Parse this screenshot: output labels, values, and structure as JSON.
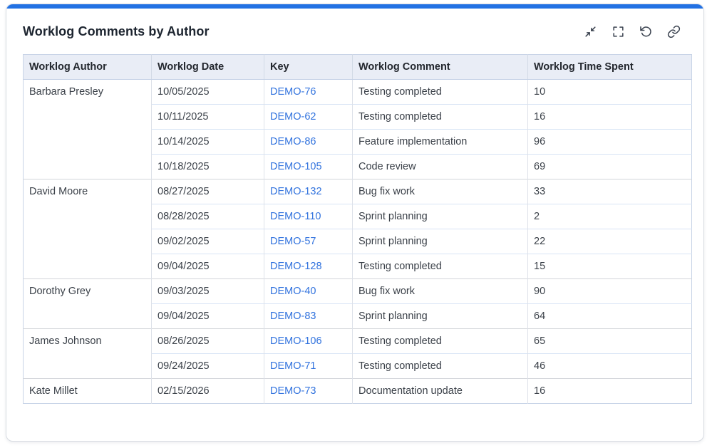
{
  "card": {
    "title": "Worklog Comments by Author",
    "accent_color": "#2271e3",
    "toolbar": [
      {
        "name": "collapse",
        "icon": "collapse-icon",
        "label": "Collapse"
      },
      {
        "name": "fullscreen",
        "icon": "fullscreen-icon",
        "label": "Fullscreen"
      },
      {
        "name": "refresh",
        "icon": "refresh-icon",
        "label": "Refresh"
      },
      {
        "name": "link",
        "icon": "link-icon",
        "label": "Copy link"
      }
    ]
  },
  "table": {
    "columns": [
      "Worklog Author",
      "Worklog Date",
      "Key",
      "Worklog Comment",
      "Worklog Time Spent"
    ],
    "colors": {
      "header_background": "#e9edf6",
      "link": "#3273de",
      "body_text": "#3b4149",
      "row_divider": "#d8e4f5",
      "group_divider": "#d2d5da",
      "outer_border": "#c8d4e7"
    },
    "groups": [
      {
        "author": "Barbara Presley",
        "rows": [
          {
            "date": "10/05/2025",
            "key": "DEMO-76",
            "comment": "Testing completed",
            "time_spent": "10"
          },
          {
            "date": "10/11/2025",
            "key": "DEMO-62",
            "comment": "Testing completed",
            "time_spent": "16"
          },
          {
            "date": "10/14/2025",
            "key": "DEMO-86",
            "comment": "Feature implementation",
            "time_spent": "96"
          },
          {
            "date": "10/18/2025",
            "key": "DEMO-105",
            "comment": "Code review",
            "time_spent": "69"
          }
        ]
      },
      {
        "author": "David Moore",
        "rows": [
          {
            "date": "08/27/2025",
            "key": "DEMO-132",
            "comment": "Bug fix work",
            "time_spent": "33"
          },
          {
            "date": "08/28/2025",
            "key": "DEMO-110",
            "comment": "Sprint planning",
            "time_spent": "2"
          },
          {
            "date": "09/02/2025",
            "key": "DEMO-57",
            "comment": "Sprint planning",
            "time_spent": "22"
          },
          {
            "date": "09/04/2025",
            "key": "DEMO-128",
            "comment": "Testing completed",
            "time_spent": "15"
          }
        ]
      },
      {
        "author": "Dorothy Grey",
        "rows": [
          {
            "date": "09/03/2025",
            "key": "DEMO-40",
            "comment": "Bug fix work",
            "time_spent": "90"
          },
          {
            "date": "09/04/2025",
            "key": "DEMO-83",
            "comment": "Sprint planning",
            "time_spent": "64"
          }
        ]
      },
      {
        "author": "James Johnson",
        "rows": [
          {
            "date": "08/26/2025",
            "key": "DEMO-106",
            "comment": "Testing completed",
            "time_spent": "65"
          },
          {
            "date": "09/24/2025",
            "key": "DEMO-71",
            "comment": "Testing completed",
            "time_spent": "46"
          }
        ]
      },
      {
        "author": "Kate Millet",
        "rows": [
          {
            "date": "02/15/2026",
            "key": "DEMO-73",
            "comment": "Documentation update",
            "time_spent": "16"
          }
        ]
      }
    ]
  }
}
